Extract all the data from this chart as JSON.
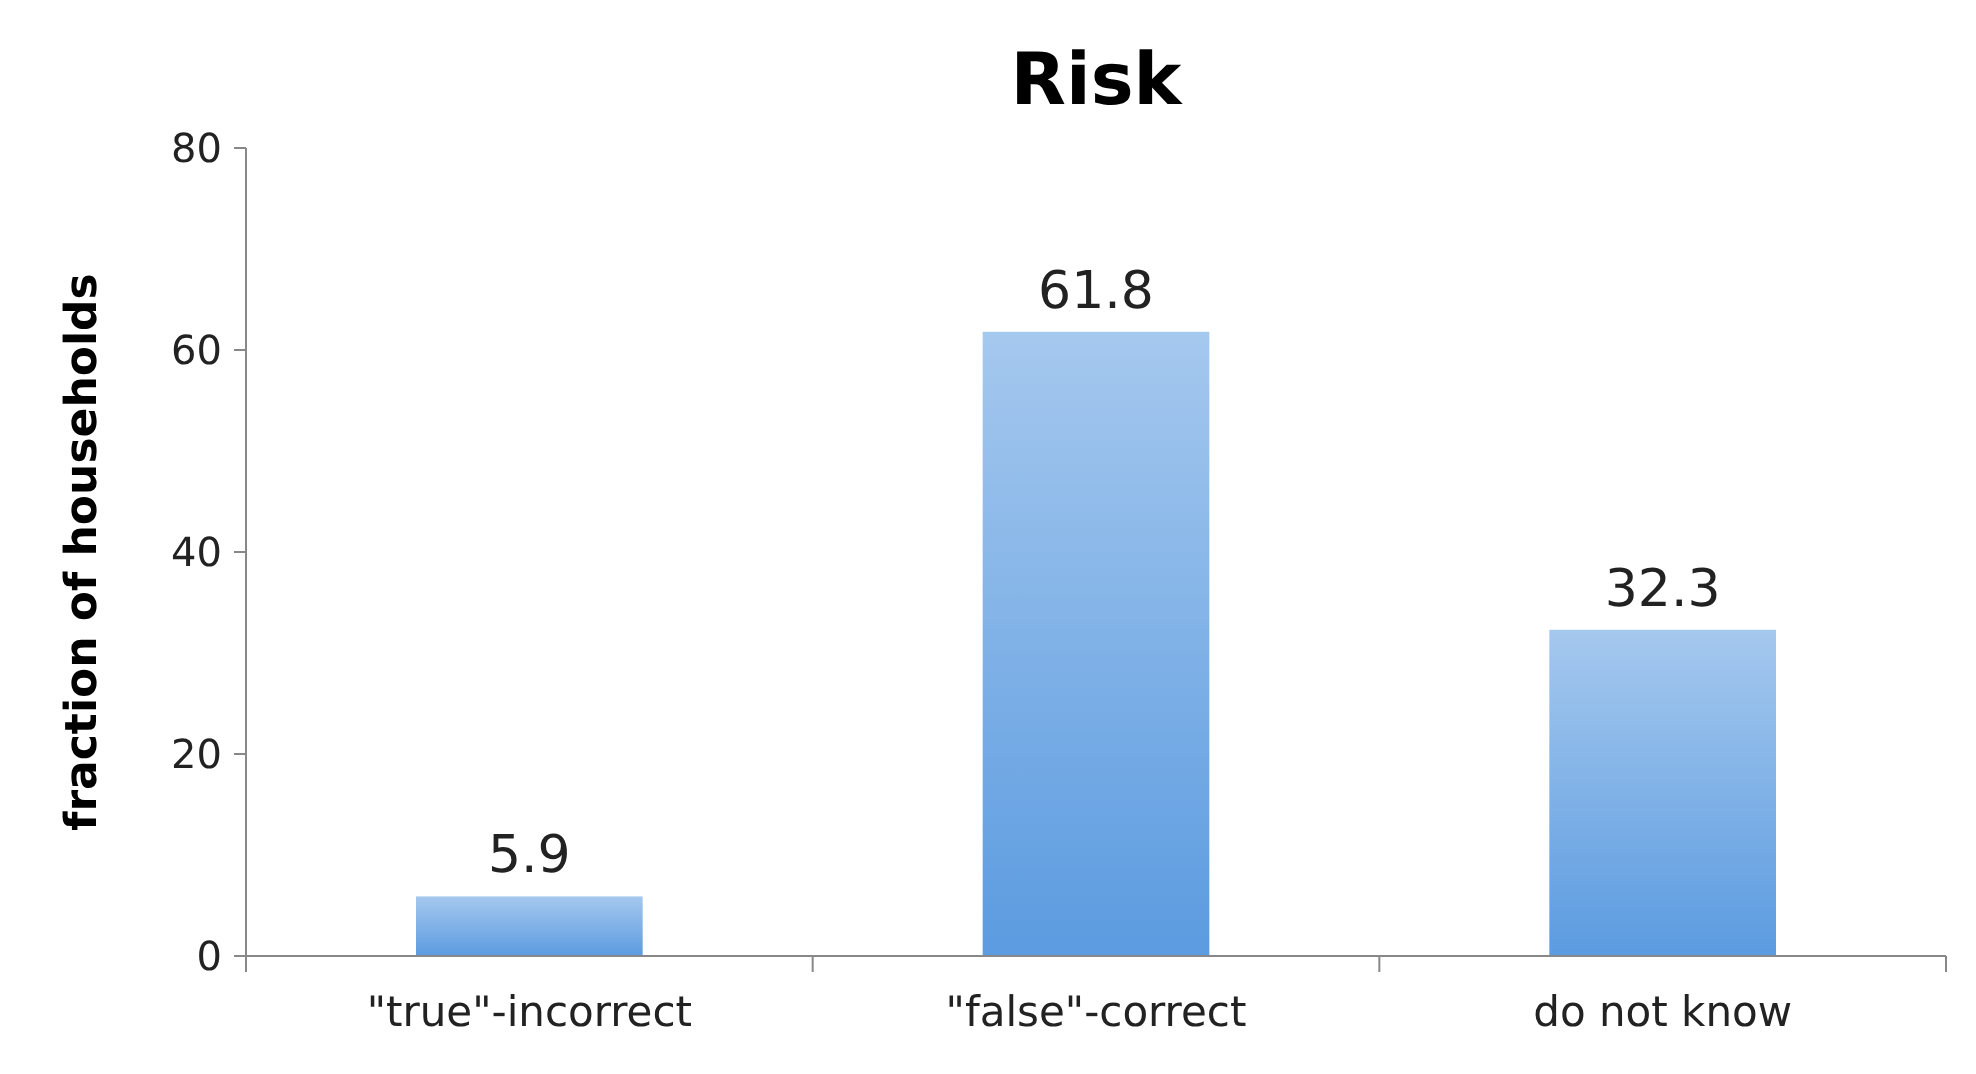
{
  "chart_data": {
    "type": "bar",
    "title": "Risk",
    "ylabel": "fraction of households",
    "categories": [
      "\"true\"-incorrect",
      "\"false\"-correct",
      "do not know"
    ],
    "values": [
      5.9,
      61.8,
      32.3
    ],
    "color": "#5b9be0",
    "ylim": [
      0,
      80
    ],
    "yticks": [
      0,
      20,
      40,
      60,
      80
    ],
    "data_labels": true,
    "grid": false
  }
}
